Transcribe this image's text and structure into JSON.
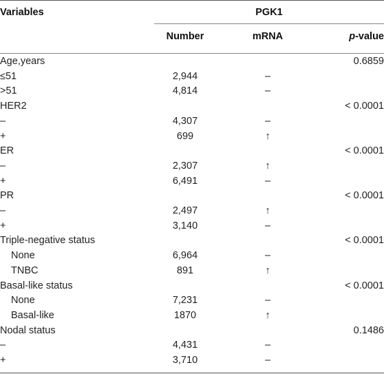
{
  "header": {
    "variables": "Variables",
    "group": "PGK1",
    "number": "Number",
    "mrna": "mRNA",
    "pvalue_italic": "p",
    "pvalue_rest": "-value"
  },
  "rows": [
    {
      "variable": "Age,years",
      "number": "",
      "mrna": "",
      "pvalue": "0.6859"
    },
    {
      "variable": "≤51",
      "number": "2,944",
      "mrna": "–",
      "pvalue": ""
    },
    {
      "variable": ">51",
      "number": "4,814",
      "mrna": "–",
      "pvalue": ""
    },
    {
      "variable": "HER2",
      "number": "",
      "mrna": "",
      "pvalue": "< 0.0001"
    },
    {
      "variable": "–",
      "number": "4,307",
      "mrna": "–",
      "pvalue": ""
    },
    {
      "variable": "+",
      "number": "699",
      "mrna": "↑",
      "pvalue": ""
    },
    {
      "variable": "ER",
      "number": "",
      "mrna": "",
      "pvalue": "< 0.0001"
    },
    {
      "variable": "–",
      "number": "2,307",
      "mrna": "↑",
      "pvalue": ""
    },
    {
      "variable": "+",
      "number": "6,491",
      "mrna": "–",
      "pvalue": ""
    },
    {
      "variable": "PR",
      "number": "",
      "mrna": "",
      "pvalue": "< 0.0001"
    },
    {
      "variable": "–",
      "number": "2,497",
      "mrna": "↑",
      "pvalue": ""
    },
    {
      "variable": "+",
      "number": "3,140",
      "mrna": "–",
      "pvalue": ""
    },
    {
      "variable": "Triple-negative status",
      "number": "",
      "mrna": "",
      "pvalue": "< 0.0001"
    },
    {
      "variable": "None",
      "number": "6,964",
      "mrna": "–",
      "pvalue": "",
      "indent": true
    },
    {
      "variable": "TNBC",
      "number": "891",
      "mrna": "↑",
      "pvalue": "",
      "indent": true
    },
    {
      "variable": "Basal-like status",
      "number": "",
      "mrna": "",
      "pvalue": "< 0.0001"
    },
    {
      "variable": "None",
      "number": "7,231",
      "mrna": "–",
      "pvalue": "",
      "indent": true
    },
    {
      "variable": "Basal-like",
      "number": "1870",
      "mrna": "↑",
      "pvalue": "",
      "indent": true
    },
    {
      "variable": "Nodal status",
      "number": "",
      "mrna": "",
      "pvalue": "0.1486"
    },
    {
      "variable": "–",
      "number": "4,431",
      "mrna": "–",
      "pvalue": ""
    },
    {
      "variable": "+",
      "number": "3,710",
      "mrna": "–",
      "pvalue": ""
    }
  ]
}
